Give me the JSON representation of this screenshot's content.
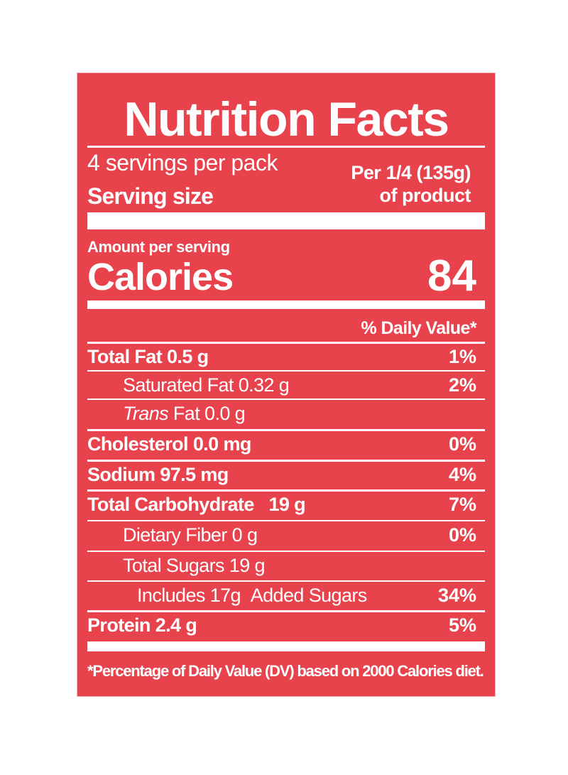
{
  "label": {
    "title": "Nutrition Facts",
    "servings_per_pack": "4 servings per pack",
    "serving_size_label": "Serving size",
    "serving_size_line1": "Per 1/4 (135g)",
    "serving_size_line2": "of product",
    "amount_per_serving": "Amount per serving",
    "calories_label": "Calories",
    "calories_value": "84",
    "daily_value_header": "% Daily Value*",
    "nutrients": [
      {
        "name": "Total Fat",
        "amount": "0.5 g",
        "dv": "1%"
      },
      {
        "name": "Saturated Fat",
        "amount": "0.32 g",
        "dv": "2%"
      },
      {
        "name": "Trans",
        "name_suffix": " Fat",
        "amount": "0.0 g",
        "dv": ""
      },
      {
        "name": "Cholesterol",
        "amount": "0.0 mg",
        "dv": "0%"
      },
      {
        "name": "Sodium",
        "amount": "97.5 mg",
        "dv": "4%"
      },
      {
        "name": "Total Carbohydrate",
        "amount": "19 g",
        "dv": "7%"
      },
      {
        "name": "Dietary Fiber",
        "amount": "0 g",
        "dv": "0%"
      },
      {
        "name": "Total Sugars",
        "amount": "19 g",
        "dv": ""
      },
      {
        "name": "Includes",
        "amount": "17g",
        "name_suffix": "Added Sugars",
        "dv": "34%"
      },
      {
        "name": "Protein",
        "amount": "2.4 g",
        "dv": "5%"
      }
    ],
    "footnote": "*Percentage of Daily Value (DV) based on 2000 Calories diet."
  },
  "colors": {
    "label_background": "#e8424c",
    "text": "#ffffff"
  }
}
